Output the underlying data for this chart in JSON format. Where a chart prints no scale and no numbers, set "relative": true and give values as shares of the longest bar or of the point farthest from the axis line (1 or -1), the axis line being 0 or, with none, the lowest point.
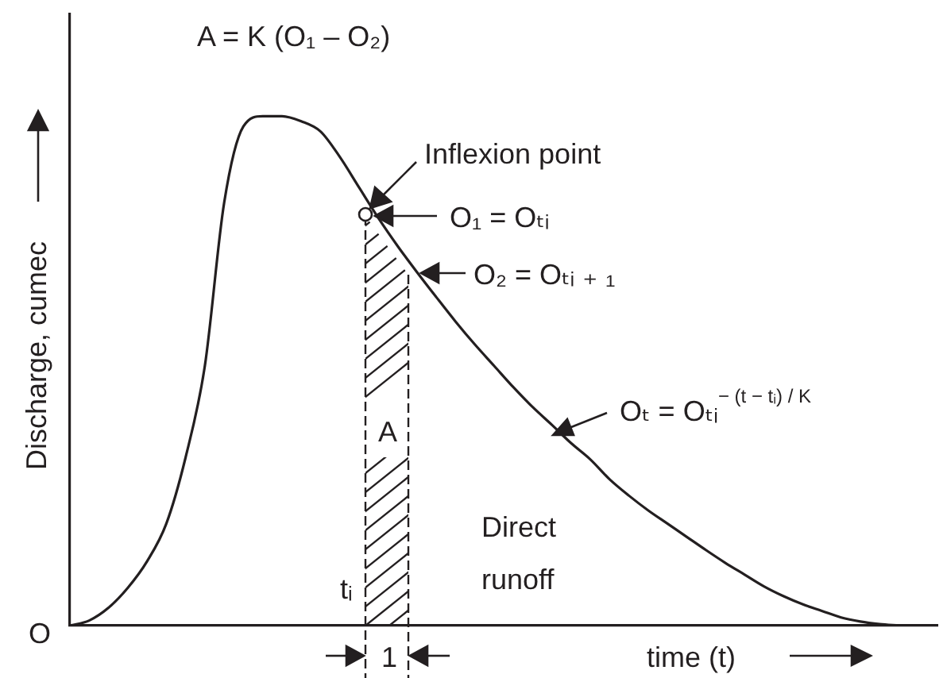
{
  "chart_data": {
    "type": "line",
    "relative": true,
    "color": "#231f20",
    "marker": "none",
    "xlabel": "time (t)",
    "ylabel": "Discharge, cumec",
    "categories": [
      null,
      null,
      null,
      null,
      null,
      null,
      null,
      null,
      null,
      null,
      null,
      null,
      null,
      null,
      null,
      null,
      null,
      null,
      null,
      null,
      null,
      null,
      null,
      null,
      null,
      null,
      null,
      null,
      null,
      null,
      null,
      null,
      null,
      null,
      null,
      null,
      null,
      null,
      null,
      null,
      null,
      null,
      null,
      null,
      null,
      null
    ],
    "values": [
      0,
      0.01,
      0.035,
      0.074,
      0.126,
      0.2,
      0.33,
      0.51,
      0.83,
      0.98,
      1,
      1,
      0.99,
      0.97,
      0.92,
      0.86,
      0.8,
      0.745,
      0.694,
      0.645,
      0.597,
      0.552,
      0.51,
      0.468,
      0.429,
      0.394,
      0.358,
      0.326,
      0.287,
      0.255,
      0.226,
      0.2,
      0.174,
      0.148,
      0.123,
      0.1,
      0.077,
      0.058,
      0.042,
      0.029,
      0.016,
      0.008,
      0.003,
      0,
      null,
      null
    ],
    "annotations": [
      "A = K (O₁ – O₂)",
      "Inflexion point",
      "O₁ = Oₜᵢ",
      "O₂ = Oₜᵢ ₊ ₁",
      "Oₜ = Oₜᵢ$^{− (t − tᵢ) / K}$",
      "A",
      "Direct\nrunoff",
      "tᵢ",
      "O",
      "1"
    ]
  }
}
